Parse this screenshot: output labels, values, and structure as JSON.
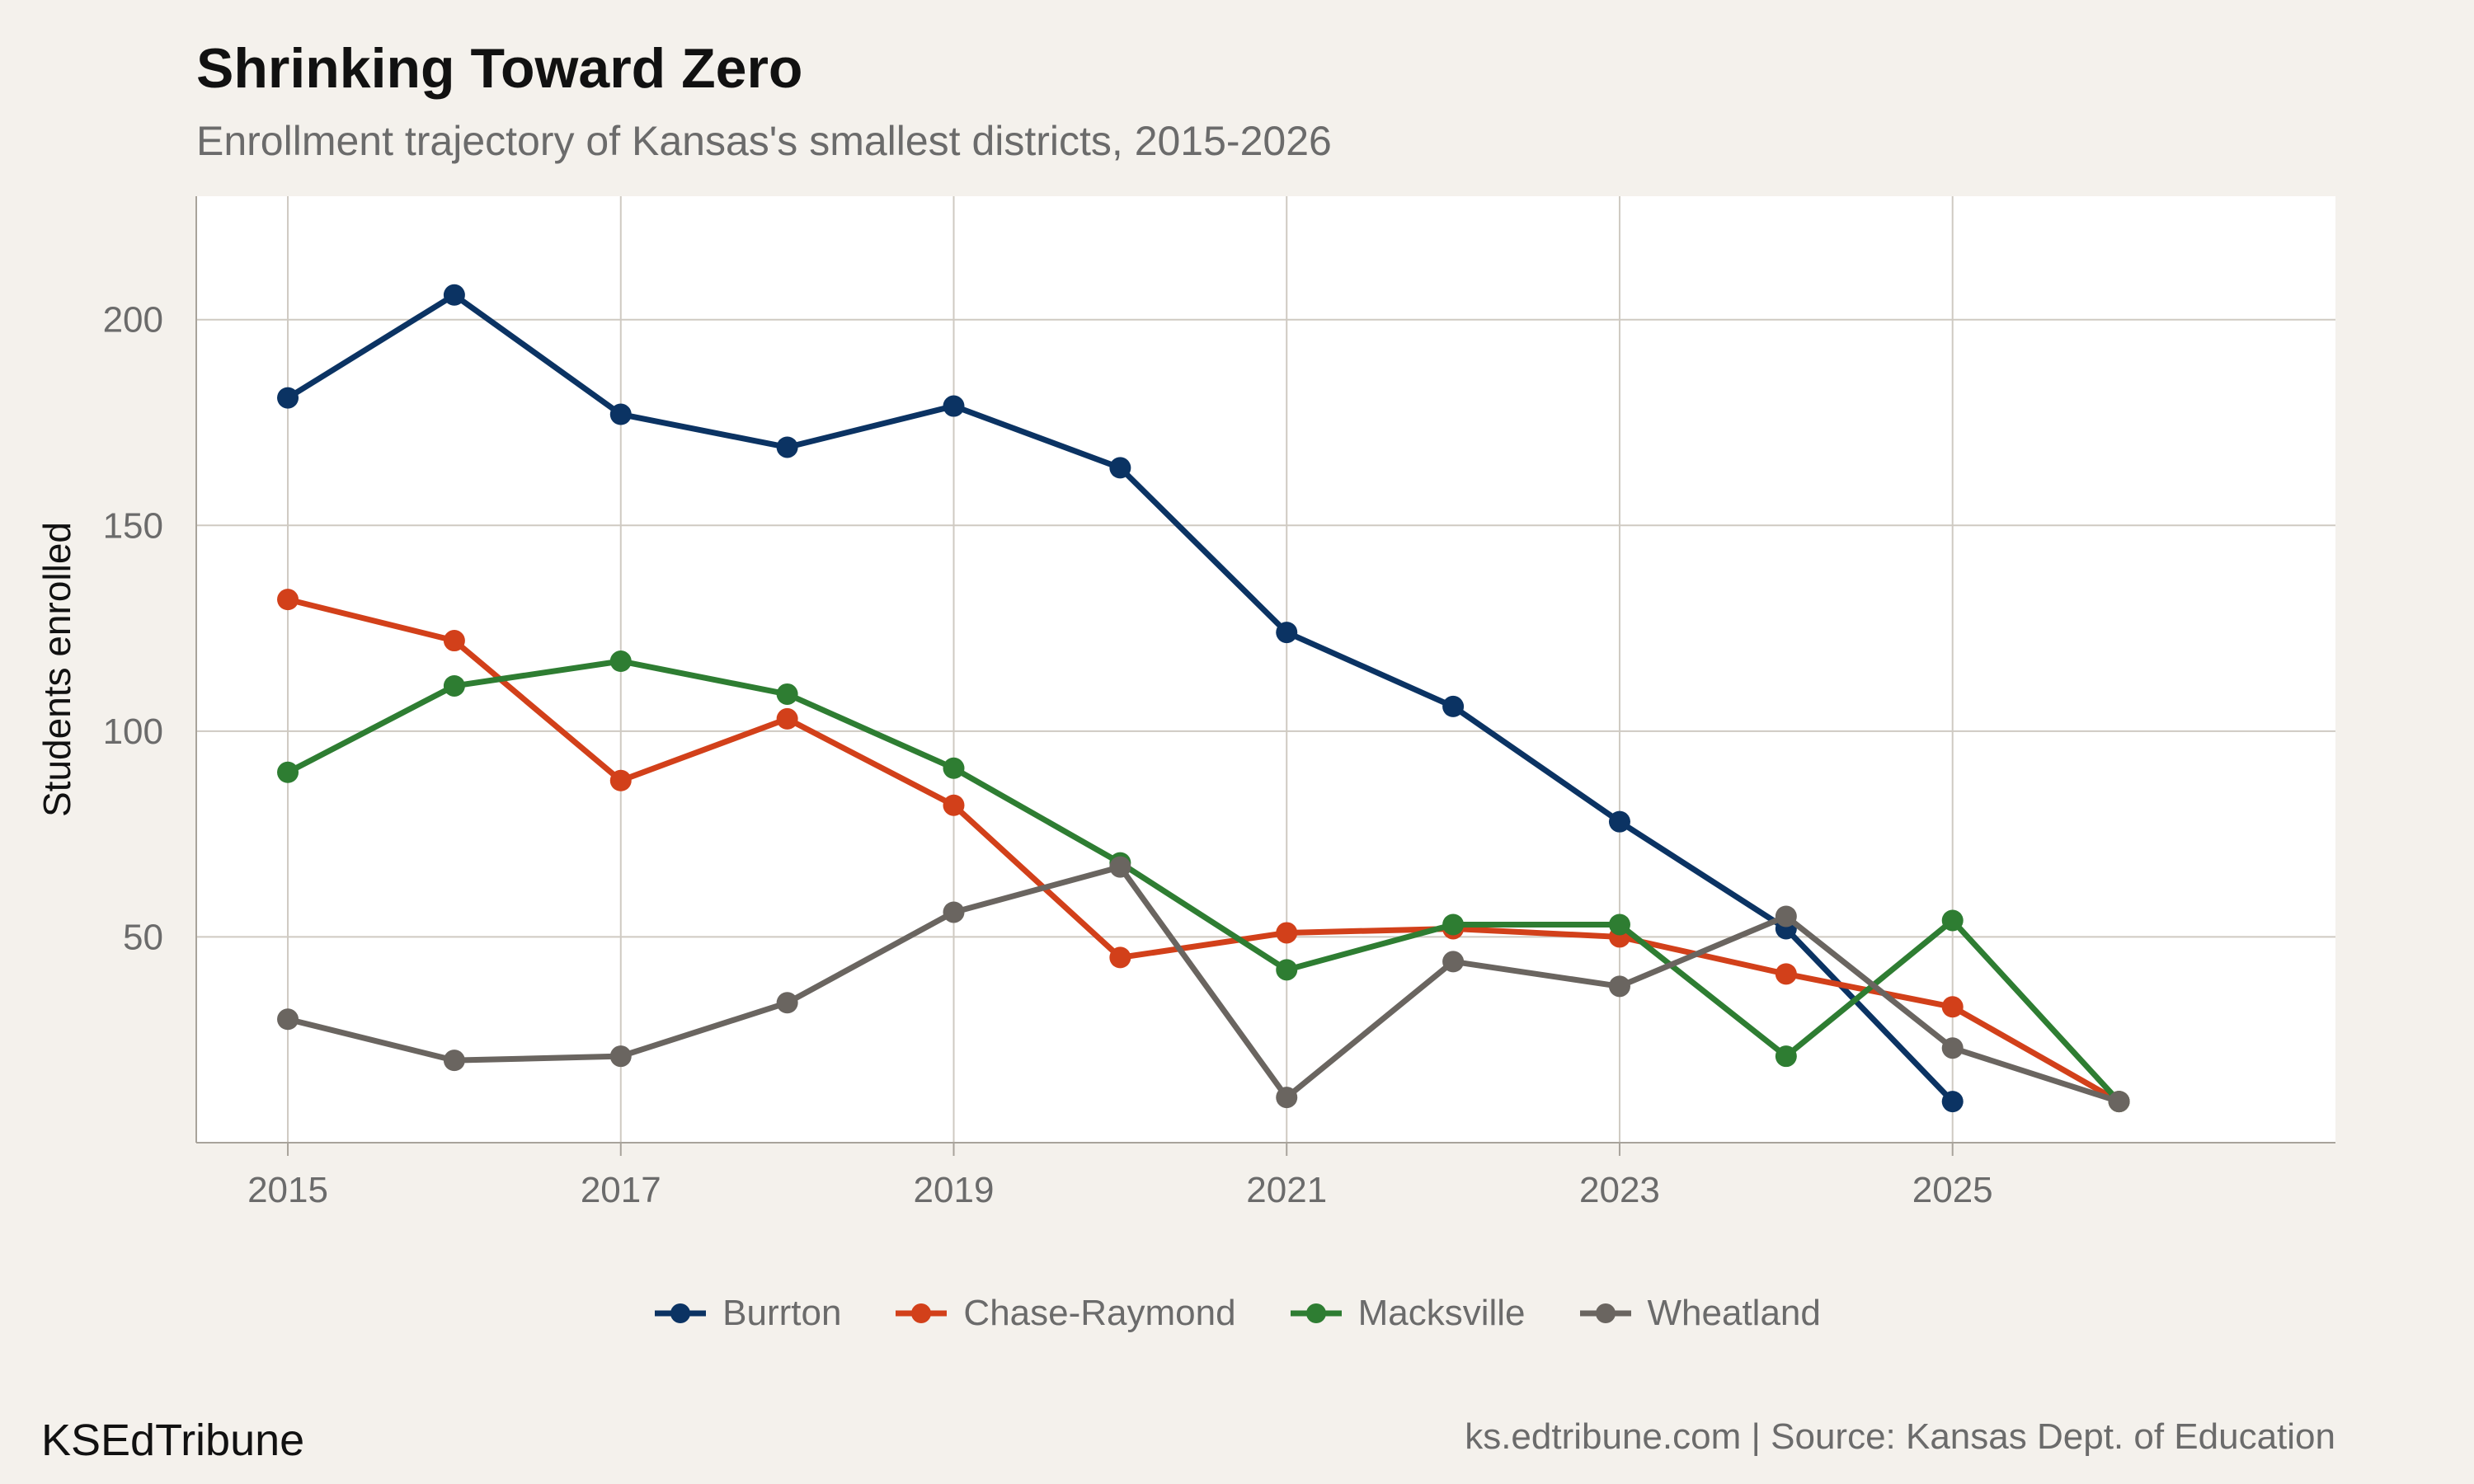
{
  "title": "Shrinking Toward Zero",
  "subtitle": "Enrollment trajectory of Kansas's smallest districts, 2015-2026",
  "brand": "KSEdTribune",
  "source": "ks.edtribune.com | Source: Kansas Dept. of Education",
  "chart_data": {
    "type": "line",
    "title": "Shrinking Toward Zero",
    "subtitle": "Enrollment trajectory of Kansas's smallest districts, 2015-2026",
    "xlabel": "",
    "ylabel": "Students enrolled",
    "xlim": [
      2014.45,
      2027.3
    ],
    "ylim": [
      0,
      230
    ],
    "xticks": [
      2015,
      2017,
      2019,
      2021,
      2023,
      2025
    ],
    "yticks": [
      50,
      100,
      150,
      200
    ],
    "grid": true,
    "legend_position": "bottom",
    "x": [
      2015,
      2016,
      2017,
      2018,
      2019,
      2020,
      2021,
      2022,
      2023,
      2024,
      2025,
      2026
    ],
    "series": [
      {
        "name": "Burrton",
        "color": "#0b3363",
        "values": [
          181,
          206,
          177,
          169,
          179,
          164,
          124,
          106,
          78,
          52,
          10,
          null
        ]
      },
      {
        "name": "Chase-Raymond",
        "color": "#d2401a",
        "values": [
          132,
          122,
          88,
          103,
          82,
          45,
          51,
          52,
          50,
          41,
          33,
          10
        ]
      },
      {
        "name": "Macksville",
        "color": "#2e7d32",
        "values": [
          90,
          111,
          117,
          109,
          91,
          68,
          42,
          53,
          53,
          21,
          54,
          10
        ]
      },
      {
        "name": "Wheatland",
        "color": "#6a6560",
        "values": [
          30,
          20,
          21,
          34,
          56,
          67,
          11,
          44,
          38,
          55,
          23,
          10
        ]
      }
    ]
  }
}
